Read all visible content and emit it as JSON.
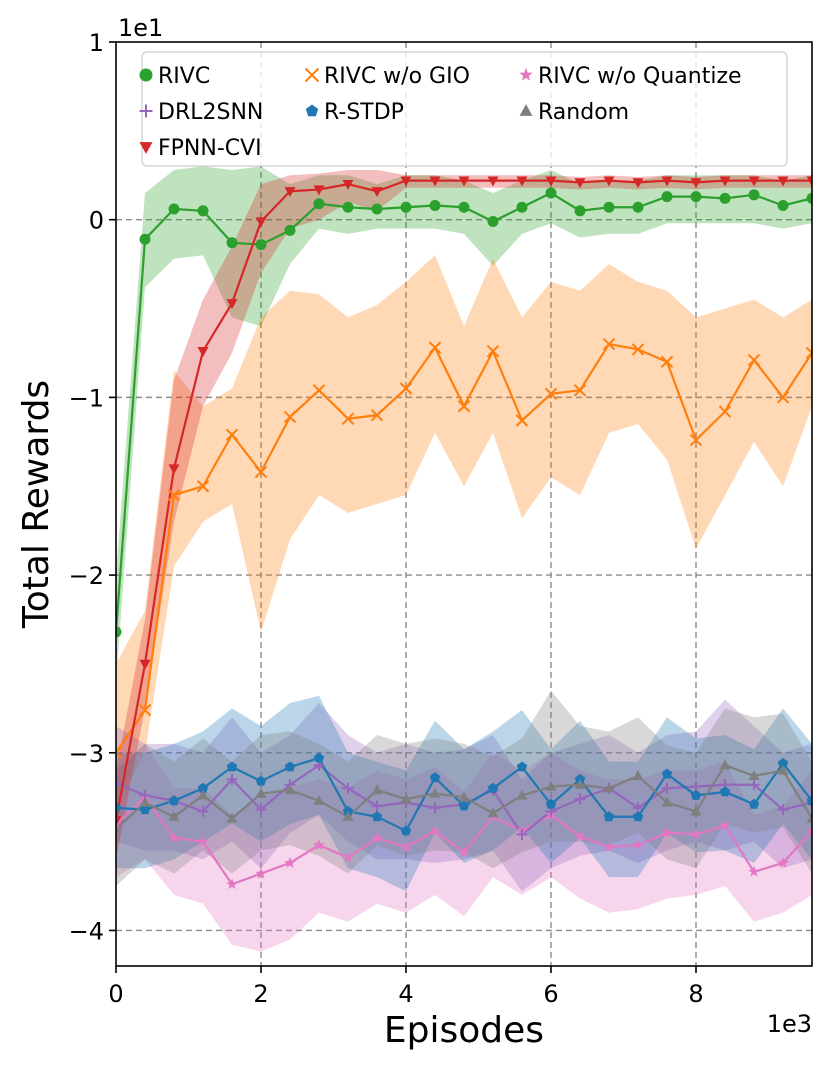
{
  "chart_data": {
    "type": "line",
    "xlabel": "Episodes",
    "ylabel": "Total Rewards",
    "x_multiplier_label": "1e3",
    "y_multiplier_label": "1e1",
    "xlim": [
      0,
      9.6
    ],
    "ylim": [
      -4.2,
      1.0
    ],
    "xticks": [
      0,
      2,
      4,
      6,
      8
    ],
    "yticks": [
      1,
      0,
      -1,
      -2,
      -3,
      -4
    ],
    "ytick_labels": [
      "1",
      "0",
      "−1",
      "−2",
      "−3",
      "−4"
    ],
    "grid": true,
    "legend_position": "top",
    "x": [
      0,
      0.4,
      0.8,
      1.2,
      1.6,
      2.0,
      2.4,
      2.8,
      3.2,
      3.6,
      4.0,
      4.4,
      4.8,
      5.2,
      5.6,
      6.0,
      6.4,
      6.8,
      7.2,
      7.6,
      8.0,
      8.4,
      8.8,
      9.2,
      9.6
    ],
    "series": [
      {
        "name": "RIVC",
        "color": "#2ca02c",
        "marker": "circle",
        "values": [
          -2.32,
          -0.11,
          0.06,
          0.05,
          -0.13,
          -0.14,
          -0.06,
          0.09,
          0.07,
          0.06,
          0.07,
          0.08,
          0.07,
          -0.01,
          0.07,
          0.15,
          0.05,
          0.07,
          0.07,
          0.13,
          0.13,
          0.12,
          0.14,
          0.08,
          0.12
        ],
        "band": [
          [
            -2.6,
            -2.0
          ],
          [
            -0.38,
            0.15
          ],
          [
            -0.22,
            0.28
          ],
          [
            -0.2,
            0.3
          ],
          [
            -0.55,
            0.28
          ],
          [
            -0.6,
            0.3
          ],
          [
            -0.25,
            0.2
          ],
          [
            -0.05,
            0.25
          ],
          [
            -0.08,
            0.25
          ],
          [
            -0.05,
            0.2
          ],
          [
            -0.05,
            0.25
          ],
          [
            -0.05,
            0.25
          ],
          [
            -0.08,
            0.22
          ],
          [
            -0.26,
            0.15
          ],
          [
            -0.08,
            0.22
          ],
          [
            -0.02,
            0.28
          ],
          [
            -0.1,
            0.2
          ],
          [
            -0.08,
            0.22
          ],
          [
            -0.08,
            0.22
          ],
          [
            -0.02,
            0.25
          ],
          [
            -0.02,
            0.25
          ],
          [
            -0.02,
            0.25
          ],
          [
            -0.02,
            0.25
          ],
          [
            -0.05,
            0.22
          ],
          [
            -0.02,
            0.25
          ]
        ]
      },
      {
        "name": "RIVC w/o GIO",
        "color": "#ff7f0e",
        "marker": "x",
        "values": [
          -3.0,
          -2.76,
          -1.55,
          -1.5,
          -1.21,
          -1.42,
          -1.11,
          -0.96,
          -1.12,
          -1.1,
          -0.95,
          -0.72,
          -1.05,
          -0.74,
          -1.13,
          -0.98,
          -0.96,
          -0.7,
          -0.73,
          -0.8,
          -1.24,
          -1.08,
          -0.79,
          -1.0,
          -0.75
        ],
        "band": [
          [
            -3.3,
            -2.5
          ],
          [
            -3.0,
            -2.2
          ],
          [
            -1.95,
            -0.85
          ],
          [
            -1.7,
            -1.05
          ],
          [
            -1.6,
            -0.95
          ],
          [
            -2.32,
            -0.55
          ],
          [
            -1.8,
            -0.4
          ],
          [
            -1.55,
            -0.42
          ],
          [
            -1.65,
            -0.55
          ],
          [
            -1.6,
            -0.48
          ],
          [
            -1.55,
            -0.35
          ],
          [
            -1.2,
            -0.2
          ],
          [
            -1.5,
            -0.6
          ],
          [
            -1.2,
            -0.22
          ],
          [
            -1.68,
            -0.55
          ],
          [
            -1.45,
            -0.35
          ],
          [
            -1.55,
            -0.4
          ],
          [
            -1.2,
            -0.25
          ],
          [
            -1.15,
            -0.35
          ],
          [
            -1.35,
            -0.4
          ],
          [
            -1.85,
            -0.55
          ],
          [
            -1.55,
            -0.5
          ],
          [
            -1.25,
            -0.45
          ],
          [
            -1.5,
            -0.55
          ],
          [
            -1.05,
            -0.45
          ]
        ]
      },
      {
        "name": "RIVC w/o Quantize",
        "color": "#e377c2",
        "marker": "star",
        "values": [
          -3.4,
          -3.25,
          -3.48,
          -3.5,
          -3.74,
          -3.68,
          -3.62,
          -3.52,
          -3.59,
          -3.48,
          -3.53,
          -3.44,
          -3.56,
          -3.36,
          -3.44,
          -3.35,
          -3.47,
          -3.53,
          -3.52,
          -3.45,
          -3.46,
          -3.41,
          -3.67,
          -3.62,
          -3.44
        ],
        "band": [
          [
            -3.7,
            -3.1
          ],
          [
            -3.6,
            -2.95
          ],
          [
            -3.8,
            -3.2
          ],
          [
            -3.85,
            -3.2
          ],
          [
            -4.08,
            -3.35
          ],
          [
            -4.12,
            -3.25
          ],
          [
            -4.05,
            -3.2
          ],
          [
            -3.9,
            -3.15
          ],
          [
            -3.95,
            -3.2
          ],
          [
            -3.85,
            -3.1
          ],
          [
            -3.9,
            -3.15
          ],
          [
            -3.8,
            -3.08
          ],
          [
            -3.92,
            -3.22
          ],
          [
            -3.7,
            -3.0
          ],
          [
            -3.8,
            -3.1
          ],
          [
            -3.7,
            -3.0
          ],
          [
            -3.82,
            -3.1
          ],
          [
            -3.9,
            -3.15
          ],
          [
            -3.88,
            -3.15
          ],
          [
            -3.82,
            -3.1
          ],
          [
            -3.8,
            -3.1
          ],
          [
            -3.75,
            -3.05
          ],
          [
            -3.95,
            -3.35
          ],
          [
            -3.9,
            -3.3
          ],
          [
            -3.8,
            -3.1
          ]
        ]
      },
      {
        "name": "DRL2SNN",
        "color": "#9467bd",
        "marker": "plus",
        "values": [
          -3.17,
          -3.24,
          -3.27,
          -3.33,
          -3.15,
          -3.32,
          -3.18,
          -3.07,
          -3.2,
          -3.3,
          -3.28,
          -3.31,
          -3.29,
          -3.21,
          -3.46,
          -3.33,
          -3.26,
          -3.2,
          -3.31,
          -3.2,
          -3.19,
          -3.18,
          -3.18,
          -3.32,
          -3.28
        ],
        "band": [
          [
            -3.5,
            -2.85
          ],
          [
            -3.55,
            -2.95
          ],
          [
            -3.55,
            -2.95
          ],
          [
            -3.6,
            -3.0
          ],
          [
            -3.5,
            -2.8
          ],
          [
            -3.65,
            -3.0
          ],
          [
            -3.45,
            -2.9
          ],
          [
            -3.35,
            -2.72
          ],
          [
            -3.5,
            -2.9
          ],
          [
            -3.6,
            -3.0
          ],
          [
            -3.6,
            -2.95
          ],
          [
            -3.62,
            -3.0
          ],
          [
            -3.6,
            -2.98
          ],
          [
            -3.55,
            -2.9
          ],
          [
            -3.78,
            -3.15
          ],
          [
            -3.65,
            -3.0
          ],
          [
            -3.58,
            -2.95
          ],
          [
            -3.55,
            -2.9
          ],
          [
            -3.62,
            -3.0
          ],
          [
            -3.55,
            -2.9
          ],
          [
            -3.5,
            -2.88
          ],
          [
            -3.55,
            -2.7
          ],
          [
            -3.5,
            -2.85
          ],
          [
            -3.65,
            -3.0
          ],
          [
            -3.6,
            -2.95
          ]
        ]
      },
      {
        "name": "R-STDP",
        "color": "#1f77b4",
        "marker": "pentagon",
        "values": [
          -3.31,
          -3.32,
          -3.27,
          -3.2,
          -3.08,
          -3.16,
          -3.08,
          -3.03,
          -3.33,
          -3.36,
          -3.44,
          -3.14,
          -3.3,
          -3.2,
          -3.08,
          -3.29,
          -3.15,
          -3.36,
          -3.36,
          -3.12,
          -3.24,
          -3.22,
          -3.29,
          -3.06,
          -3.27
        ],
        "band": [
          [
            -3.65,
            -3.0
          ],
          [
            -3.65,
            -3.0
          ],
          [
            -3.6,
            -2.95
          ],
          [
            -3.5,
            -2.88
          ],
          [
            -3.4,
            -2.75
          ],
          [
            -3.5,
            -2.85
          ],
          [
            -3.4,
            -2.72
          ],
          [
            -3.35,
            -2.68
          ],
          [
            -3.65,
            -3.0
          ],
          [
            -3.7,
            -3.05
          ],
          [
            -3.78,
            -3.1
          ],
          [
            -3.45,
            -2.82
          ],
          [
            -3.62,
            -2.98
          ],
          [
            -3.55,
            -2.88
          ],
          [
            -3.42,
            -2.76
          ],
          [
            -3.62,
            -2.98
          ],
          [
            -3.48,
            -2.82
          ],
          [
            -3.7,
            -3.05
          ],
          [
            -3.7,
            -3.05
          ],
          [
            -3.45,
            -2.8
          ],
          [
            -3.56,
            -2.92
          ],
          [
            -3.55,
            -2.9
          ],
          [
            -3.62,
            -2.98
          ],
          [
            -3.4,
            -2.75
          ],
          [
            -3.6,
            -2.95
          ]
        ]
      },
      {
        "name": "Random",
        "color": "#7f7f7f",
        "marker": "triangle",
        "values": [
          -3.43,
          -3.28,
          -3.36,
          -3.24,
          -3.37,
          -3.23,
          -3.21,
          -3.27,
          -3.36,
          -3.21,
          -3.26,
          -3.23,
          -3.25,
          -3.34,
          -3.24,
          -3.19,
          -3.18,
          -3.2,
          -3.13,
          -3.28,
          -3.33,
          -3.07,
          -3.13,
          -3.1,
          -3.37
        ],
        "band": [
          [
            -3.75,
            -3.1
          ],
          [
            -3.6,
            -2.95
          ],
          [
            -3.68,
            -3.05
          ],
          [
            -3.55,
            -2.92
          ],
          [
            -3.68,
            -3.05
          ],
          [
            -3.55,
            -2.9
          ],
          [
            -3.52,
            -2.88
          ],
          [
            -3.58,
            -2.95
          ],
          [
            -3.68,
            -3.05
          ],
          [
            -3.52,
            -2.9
          ],
          [
            -3.58,
            -2.95
          ],
          [
            -3.55,
            -2.92
          ],
          [
            -3.56,
            -2.95
          ],
          [
            -3.65,
            -3.02
          ],
          [
            -3.56,
            -2.92
          ],
          [
            -3.5,
            -2.65
          ],
          [
            -3.5,
            -2.85
          ],
          [
            -3.52,
            -2.88
          ],
          [
            -3.45,
            -2.8
          ],
          [
            -3.6,
            -2.96
          ],
          [
            -3.65,
            -3.0
          ],
          [
            -3.4,
            -2.75
          ],
          [
            -3.45,
            -2.8
          ],
          [
            -3.42,
            -2.78
          ],
          [
            -3.68,
            -3.05
          ]
        ]
      },
      {
        "name": "FPNN-CVI",
        "color": "#d62728",
        "marker": "triangle-down",
        "values": [
          -3.38,
          -2.5,
          -1.4,
          -0.74,
          -0.47,
          -0.01,
          0.16,
          0.17,
          0.2,
          0.16,
          0.22,
          0.22,
          0.22,
          0.22,
          0.22,
          0.22,
          0.21,
          0.22,
          0.21,
          0.22,
          0.21,
          0.22,
          0.22,
          0.22,
          0.22
        ],
        "band": [
          [
            -3.6,
            -3.1
          ],
          [
            -2.75,
            -2.25
          ],
          [
            -1.7,
            -0.9
          ],
          [
            -1.05,
            -0.45
          ],
          [
            -0.75,
            -0.15
          ],
          [
            -0.3,
            0.2
          ],
          [
            -0.05,
            0.25
          ],
          [
            0.0,
            0.26
          ],
          [
            0.1,
            0.28
          ],
          [
            0.05,
            0.28
          ],
          [
            0.18,
            0.25
          ],
          [
            0.18,
            0.25
          ],
          [
            0.18,
            0.25
          ],
          [
            0.18,
            0.25
          ],
          [
            0.18,
            0.25
          ],
          [
            0.18,
            0.25
          ],
          [
            0.17,
            0.24
          ],
          [
            0.18,
            0.25
          ],
          [
            0.17,
            0.24
          ],
          [
            0.18,
            0.25
          ],
          [
            0.17,
            0.24
          ],
          [
            0.18,
            0.25
          ],
          [
            0.18,
            0.25
          ],
          [
            0.18,
            0.25
          ],
          [
            0.18,
            0.25
          ]
        ]
      }
    ],
    "legend": [
      {
        "name": "RIVC",
        "marker": "circle",
        "color": "#2ca02c"
      },
      {
        "name": "RIVC w/o GIO",
        "marker": "x",
        "color": "#ff7f0e"
      },
      {
        "name": "RIVC w/o Quantize",
        "marker": "star",
        "color": "#e377c2"
      },
      {
        "name": "DRL2SNN",
        "marker": "plus",
        "color": "#9467bd"
      },
      {
        "name": "R-STDP",
        "marker": "pentagon",
        "color": "#1f77b4"
      },
      {
        "name": "Random",
        "marker": "triangle",
        "color": "#7f7f7f"
      },
      {
        "name": "FPNN-CVI",
        "marker": "triangle-down",
        "color": "#d62728"
      }
    ]
  }
}
